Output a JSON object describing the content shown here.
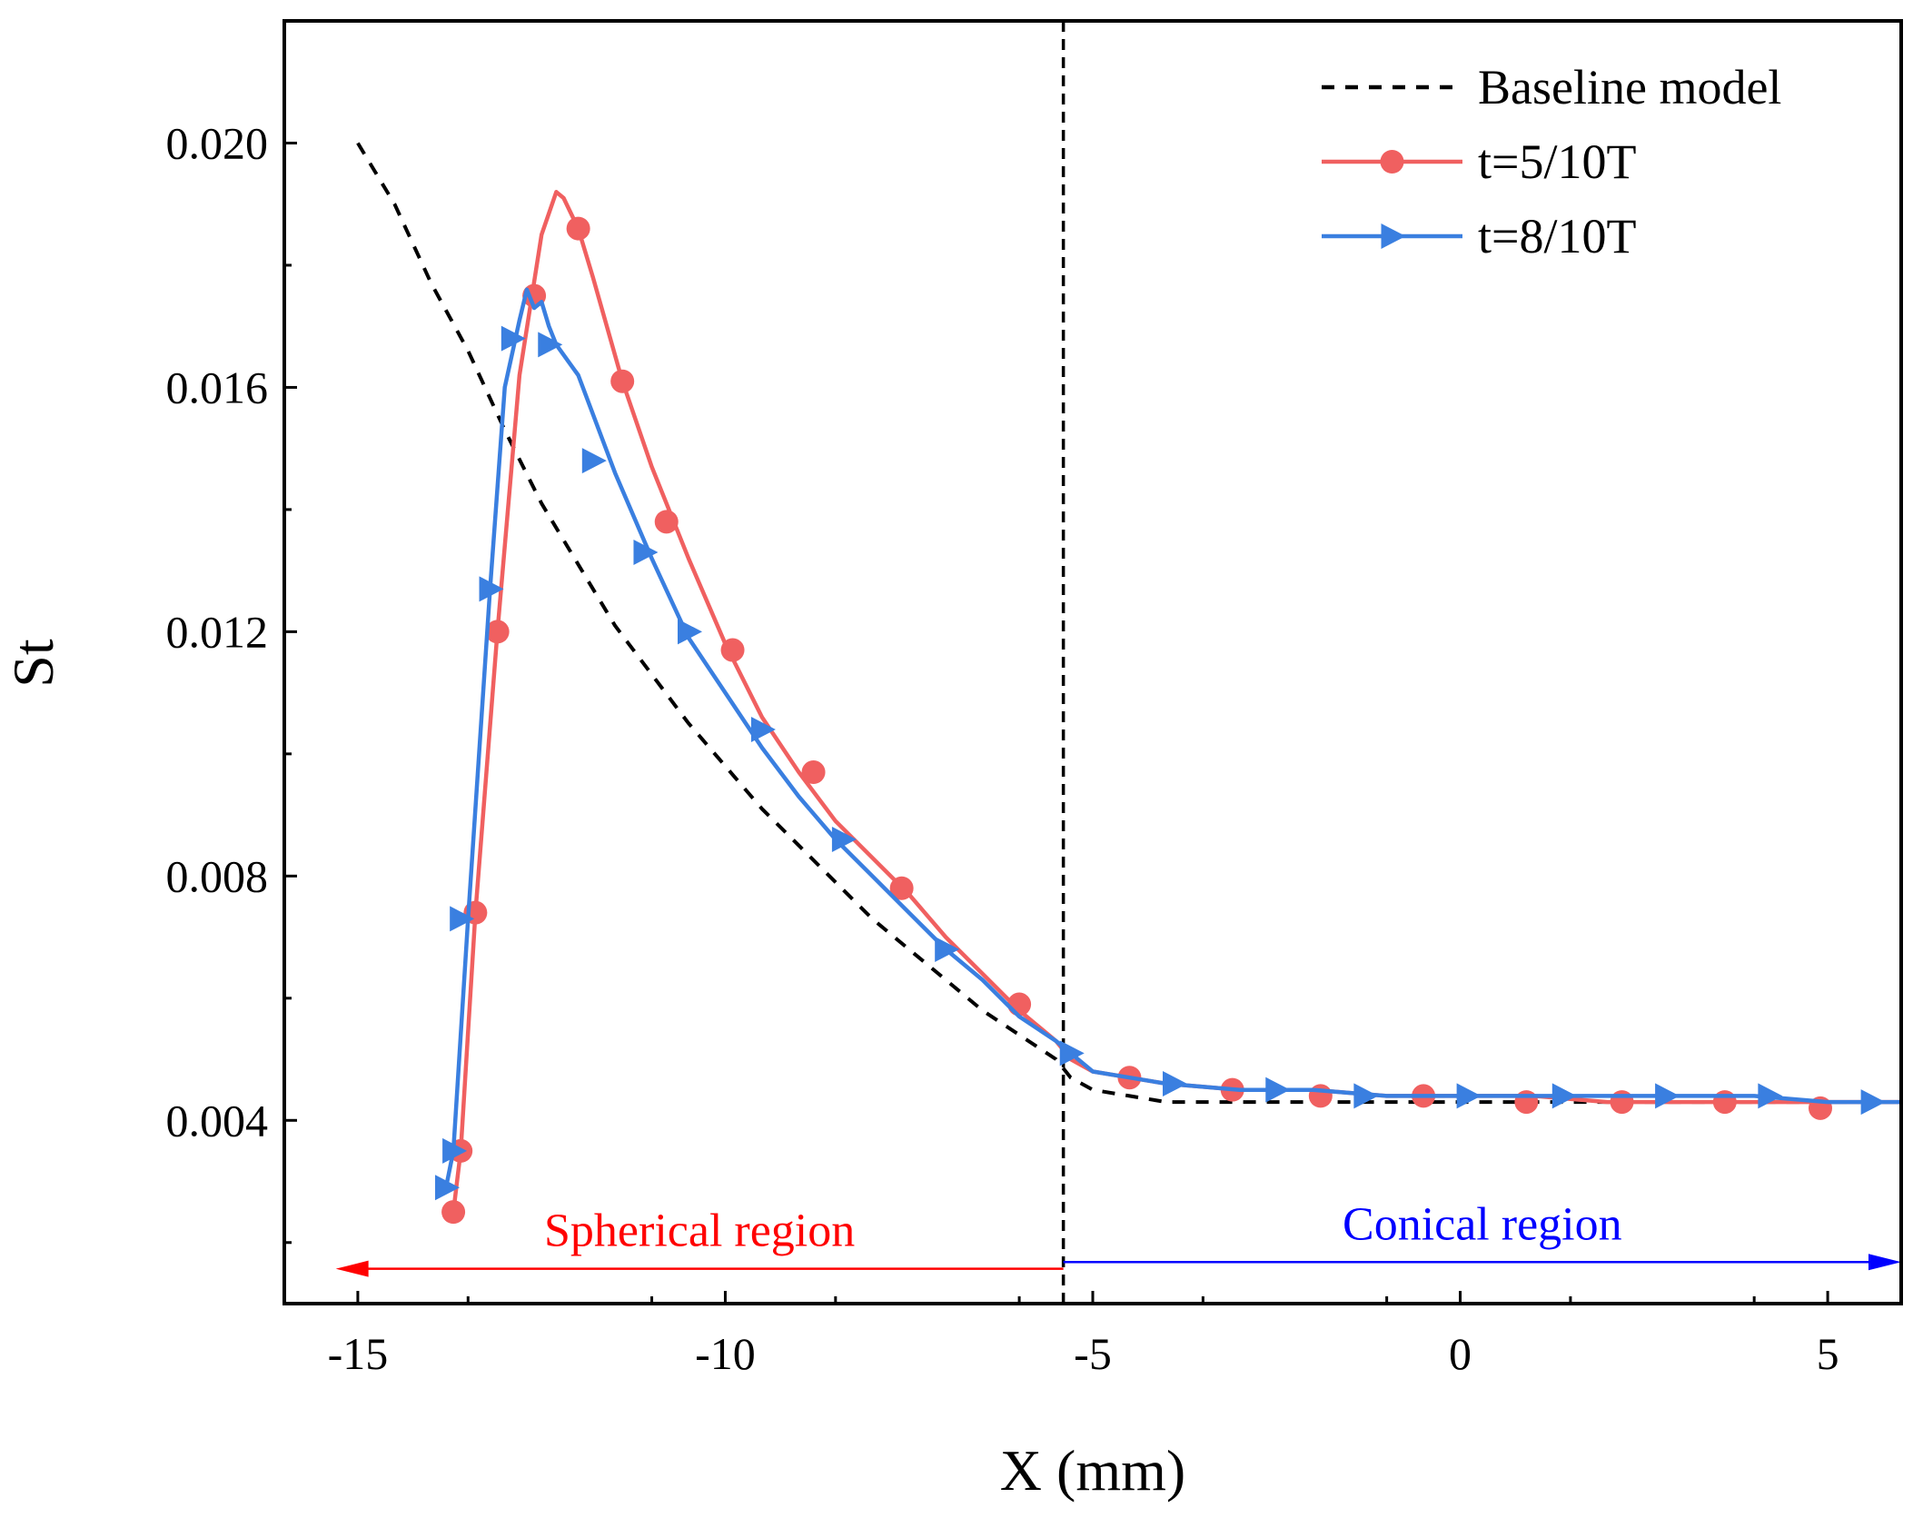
{
  "chart_data": {
    "type": "line",
    "xlabel": "X (mm)",
    "ylabel": "St",
    "xlim": [
      -16,
      6
    ],
    "ylim": [
      0.001,
      0.022
    ],
    "x_ticks": [
      -15,
      -10,
      -5,
      0,
      5
    ],
    "x_tick_labels": [
      "-15",
      "-10",
      "-5",
      "0",
      "5"
    ],
    "y_ticks": [
      0.004,
      0.008,
      0.012,
      0.016,
      0.02
    ],
    "y_tick_labels": [
      "0.004",
      "0.008",
      "0.012",
      "0.016",
      "0.020"
    ],
    "legend_position": "top-right",
    "series": [
      {
        "name": "Baseline model",
        "color": "#000000",
        "style": "dashed",
        "marker": "none",
        "x": [
          -15.0,
          -14.5,
          -14.0,
          -13.5,
          -13.0,
          -12.5,
          -12.0,
          -11.5,
          -11.0,
          -10.5,
          -10.0,
          -9.5,
          -9.0,
          -8.5,
          -8.0,
          -7.5,
          -7.0,
          -6.5,
          -6.0,
          -5.5,
          -5.3,
          -5.0,
          -4.5,
          -4.0,
          -3.0,
          -2.0,
          -1.0,
          0.0,
          1.0,
          2.0,
          3.0,
          4.0,
          5.0,
          6.0
        ],
        "y": [
          0.02,
          0.019,
          0.0177,
          0.0166,
          0.0153,
          0.0141,
          0.0131,
          0.0121,
          0.0113,
          0.0105,
          0.0098,
          0.0091,
          0.0085,
          0.0079,
          0.0073,
          0.0068,
          0.0063,
          0.0058,
          0.0054,
          0.005,
          0.0047,
          0.0045,
          0.0044,
          0.0043,
          0.0043,
          0.0043,
          0.0043,
          0.0043,
          0.0043,
          0.0043,
          0.0043,
          0.0043,
          0.0043,
          0.0043
        ]
      },
      {
        "name": "t=5/10T",
        "color": "#f06060",
        "style": "solid",
        "marker": "circle",
        "x": [
          -13.7,
          -13.6,
          -13.4,
          -13.1,
          -12.8,
          -12.5,
          -12.3,
          -12.2,
          -12.0,
          -11.8,
          -11.4,
          -11.0,
          -10.5,
          -10.0,
          -9.5,
          -9.0,
          -8.5,
          -8.0,
          -7.5,
          -7.0,
          -6.5,
          -6.0,
          -5.5,
          -5.3,
          -5.0,
          -4.5,
          -4.0,
          -3.0,
          -2.0,
          -1.0,
          0.0,
          1.0,
          2.0,
          3.0,
          4.0,
          5.0,
          6.0
        ],
        "y": [
          0.0025,
          0.0035,
          0.0074,
          0.012,
          0.0162,
          0.0185,
          0.0192,
          0.0191,
          0.0186,
          0.0178,
          0.0161,
          0.0147,
          0.0132,
          0.0118,
          0.0106,
          0.0097,
          0.0089,
          0.0083,
          0.0077,
          0.007,
          0.0064,
          0.0058,
          0.0053,
          0.005,
          0.0048,
          0.0047,
          0.0046,
          0.0045,
          0.0045,
          0.0044,
          0.0044,
          0.0044,
          0.0043,
          0.0043,
          0.0043,
          0.0043,
          0.0043
        ],
        "marker_x": [
          -13.7,
          -13.6,
          -13.4,
          -13.1,
          -12.6,
          -12.0,
          -11.4,
          -10.8,
          -9.9,
          -8.8,
          -7.6,
          -6.0,
          -4.5,
          -3.1,
          -1.9,
          -0.5,
          0.9,
          2.2,
          3.6,
          4.9
        ],
        "marker_y": [
          0.0025,
          0.0035,
          0.0074,
          0.012,
          0.0175,
          0.0186,
          0.0161,
          0.0138,
          0.0117,
          0.0097,
          0.0078,
          0.0059,
          0.0047,
          0.0045,
          0.0044,
          0.0044,
          0.0043,
          0.0043,
          0.0043,
          0.0042
        ]
      },
      {
        "name": "t=8/10T",
        "color": "#3a7fe0",
        "style": "solid",
        "marker": "triangle-right",
        "x": [
          -13.8,
          -13.7,
          -13.5,
          -13.2,
          -13.0,
          -12.8,
          -12.7,
          -12.6,
          -12.5,
          -12.4,
          -12.3,
          -12.0,
          -11.5,
          -11.0,
          -10.5,
          -10.0,
          -9.5,
          -9.0,
          -8.5,
          -8.0,
          -7.5,
          -7.0,
          -6.5,
          -6.0,
          -5.5,
          -5.3,
          -5.0,
          -4.5,
          -4.0,
          -3.0,
          -2.0,
          -1.0,
          0.0,
          1.0,
          2.0,
          3.0,
          4.0,
          5.0,
          6.0
        ],
        "y": [
          0.0029,
          0.0035,
          0.0073,
          0.0127,
          0.016,
          0.0171,
          0.0176,
          0.0173,
          0.0174,
          0.017,
          0.0167,
          0.0162,
          0.0146,
          0.0132,
          0.0119,
          0.011,
          0.0101,
          0.0093,
          0.0086,
          0.008,
          0.0074,
          0.0068,
          0.0063,
          0.0057,
          0.0053,
          0.0051,
          0.0048,
          0.0047,
          0.0046,
          0.0045,
          0.0045,
          0.0044,
          0.0044,
          0.0044,
          0.0044,
          0.0044,
          0.0044,
          0.0043,
          0.0043
        ],
        "marker_x": [
          -13.8,
          -13.7,
          -13.6,
          -13.2,
          -12.9,
          -12.4,
          -11.8,
          -11.1,
          -10.5,
          -9.5,
          -8.4,
          -7.0,
          -5.3,
          -3.9,
          -2.5,
          -1.3,
          0.1,
          1.4,
          2.8,
          4.2,
          5.6
        ],
        "marker_y": [
          0.0029,
          0.0035,
          0.0073,
          0.0127,
          0.0168,
          0.0167,
          0.0148,
          0.0133,
          0.012,
          0.0104,
          0.0086,
          0.0068,
          0.0051,
          0.0046,
          0.0045,
          0.0044,
          0.0044,
          0.0044,
          0.0044,
          0.0044,
          0.0043
        ]
      }
    ],
    "annotations": [
      {
        "text": "Spherical region",
        "color": "#ff0000",
        "x_from": -5.4,
        "x_to": -15.3,
        "y": 0.00157
      },
      {
        "text": "Conical region",
        "color": "#0000ff",
        "x_from": -5.4,
        "x_to": 6.0,
        "y": 0.00168
      }
    ],
    "vertical_line": {
      "x": -5.4,
      "style": "dashed",
      "color": "#000000"
    }
  }
}
